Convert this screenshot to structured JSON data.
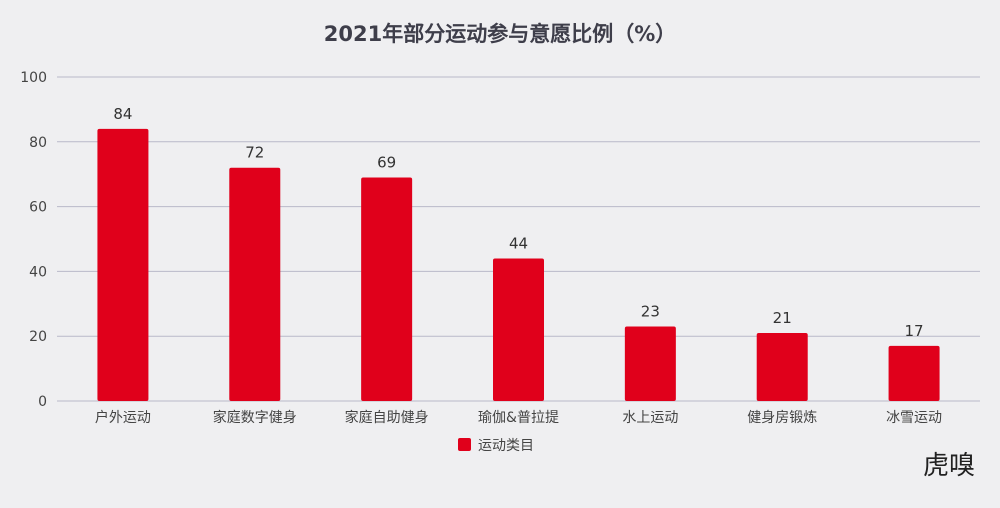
{
  "chart_data": {
    "type": "bar",
    "title": "2021年部分运动参与意愿比例（%）",
    "categories": [
      "户外运动",
      "家庭数字健身",
      "家庭自助健身",
      "瑜伽&普拉提",
      "水上运动",
      "健身房锻炼",
      "冰雪运动"
    ],
    "series": [
      {
        "name": "运动类目",
        "values": [
          84,
          72,
          69,
          44,
          23,
          21,
          17
        ]
      }
    ],
    "ylim": [
      0,
      100
    ],
    "yticks": [
      0,
      20,
      40,
      60,
      80,
      100
    ],
    "grid": true,
    "data_labels": true,
    "legend_position": "bottom",
    "bar_color": "#e0001b",
    "grid_color": "#b9b9c9"
  },
  "watermark": {
    "logo_text": "虎嗅"
  }
}
